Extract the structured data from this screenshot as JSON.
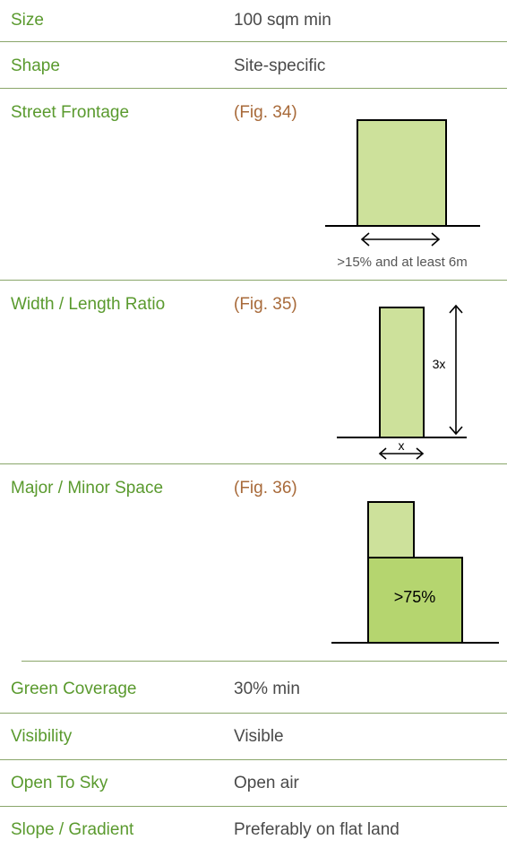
{
  "rows": {
    "size": {
      "label": "Size",
      "value": "100 sqm min"
    },
    "shape": {
      "label": "Shape",
      "value": "Site-specific"
    },
    "street_frontage": {
      "label": "Street Frontage",
      "fig": "(Fig. 34)",
      "annotation": ">15% and at least 6m"
    },
    "width_length": {
      "label": "Width / Length Ratio",
      "fig": "(Fig. 35)",
      "height_label": "3x",
      "width_label": "x"
    },
    "major_minor": {
      "label": "Major / Minor Space",
      "fig": "(Fig. 36)",
      "percent_label": ">75%"
    },
    "green_coverage": {
      "label": "Green Coverage",
      "value": "30% min"
    },
    "visibility": {
      "label": "Visibility",
      "value": "Visible"
    },
    "open_to_sky": {
      "label": "Open To Sky",
      "value": "Open air"
    },
    "slope": {
      "label": "Slope / Gradient",
      "value": "Preferably on flat land"
    }
  },
  "colors": {
    "label": "#5a9a2e",
    "value": "#4a4a4a",
    "fig_ref": "#a86a3a",
    "fill_light": "#cde19b",
    "fill_dark": "#b5d56f",
    "divider": "#8aa66a"
  }
}
